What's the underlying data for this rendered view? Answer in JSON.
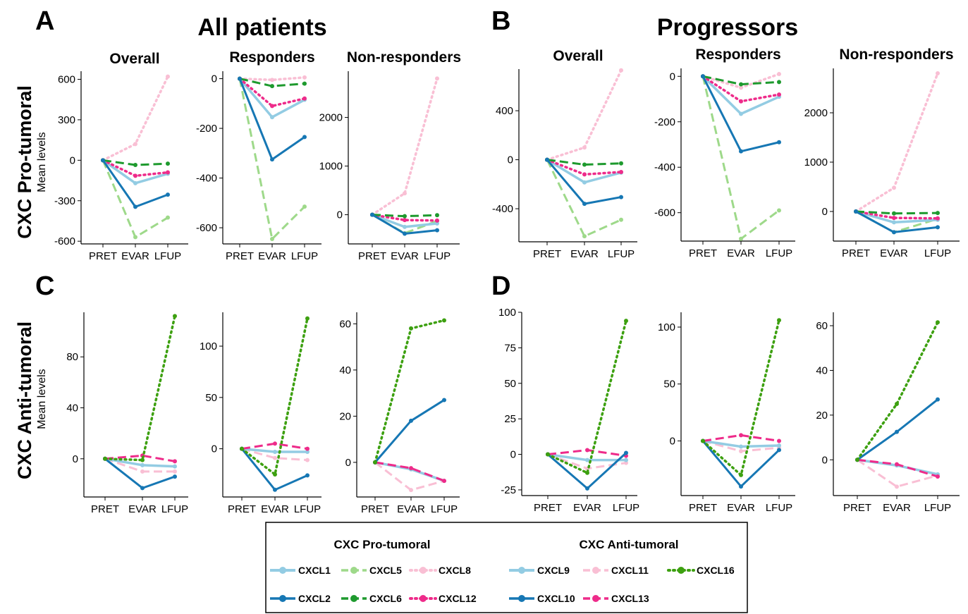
{
  "figure": {
    "groups": [
      {
        "letter": "A",
        "title": "All patients"
      },
      {
        "letter": "B",
        "title": "Progressors"
      },
      {
        "letter": "C",
        "title": ""
      },
      {
        "letter": "D",
        "title": ""
      }
    ],
    "row_labels": [
      "CXC Pro-tumoral",
      "CXC Anti-tumoral"
    ],
    "y_axis_label": "Mean levels"
  },
  "series_styles": {
    "CXCL1": {
      "color": "#93CCE3",
      "dash": "solid",
      "width": 3.5
    },
    "CXCL2": {
      "color": "#1677B4",
      "dash": "solid",
      "width": 3.0
    },
    "CXCL5": {
      "color": "#9ED98A",
      "dash": "dashed",
      "width": 3.0
    },
    "CXCL6": {
      "color": "#1E9A2E",
      "dash": "dashed",
      "width": 3.0
    },
    "CXCL8": {
      "color": "#F9BFD4",
      "dash": "dotted",
      "width": 3.5
    },
    "CXCL12": {
      "color": "#EE2B8A",
      "dash": "dotted",
      "width": 3.5
    },
    "CXCL9": {
      "color": "#93CCE3",
      "dash": "solid",
      "width": 3.5
    },
    "CXCL10": {
      "color": "#1677B4",
      "dash": "solid",
      "width": 3.0
    },
    "CXCL11": {
      "color": "#F9BFD4",
      "dash": "dashed",
      "width": 3.0
    },
    "CXCL13": {
      "color": "#EE2B8A",
      "dash": "dashed",
      "width": 3.0
    },
    "CXCL16": {
      "color": "#3DA010",
      "dash": "dotted",
      "width": 3.5
    }
  },
  "legend": {
    "pro_title": "CXC Pro-tumoral",
    "anti_title": "CXC Anti-tumoral",
    "pro_items": [
      [
        "CXCL1",
        "CXCL5",
        "CXCL8"
      ],
      [
        "CXCL2",
        "CXCL6",
        "CXCL12"
      ]
    ],
    "anti_items": [
      [
        "CXCL9",
        "CXCL11",
        "CXCL16"
      ],
      [
        "CXCL10",
        "CXCL13"
      ]
    ]
  },
  "chart_data": [
    {
      "id": "A-overall",
      "type": "line",
      "title": "Overall",
      "categories": [
        "PRET",
        "EVAR",
        "LFUP"
      ],
      "ylim": [
        -620,
        660
      ],
      "yticks": [
        -600,
        -300,
        0,
        300,
        600
      ],
      "series": [
        {
          "name": "CXCL8",
          "values": [
            0,
            120,
            620
          ]
        },
        {
          "name": "CXCL5",
          "values": [
            0,
            -570,
            -425
          ]
        },
        {
          "name": "CXCL1",
          "values": [
            0,
            -170,
            -100
          ]
        },
        {
          "name": "CXCL12",
          "values": [
            0,
            -115,
            -90
          ]
        },
        {
          "name": "CXCL6",
          "values": [
            0,
            -35,
            -25
          ]
        },
        {
          "name": "CXCL2",
          "values": [
            0,
            -345,
            -255
          ]
        }
      ]
    },
    {
      "id": "A-responders",
      "type": "line",
      "title": "Responders",
      "categories": [
        "PRET",
        "EVAR",
        "LFUP"
      ],
      "ylim": [
        -665,
        30
      ],
      "yticks": [
        -600,
        -400,
        -200,
        0
      ],
      "series": [
        {
          "name": "CXCL8",
          "values": [
            0,
            -5,
            5
          ]
        },
        {
          "name": "CXCL5",
          "values": [
            0,
            -645,
            -515
          ]
        },
        {
          "name": "CXCL1",
          "values": [
            0,
            -155,
            -85
          ]
        },
        {
          "name": "CXCL12",
          "values": [
            0,
            -110,
            -80
          ]
        },
        {
          "name": "CXCL6",
          "values": [
            0,
            -30,
            -20
          ]
        },
        {
          "name": "CXCL2",
          "values": [
            0,
            -325,
            -235
          ]
        }
      ]
    },
    {
      "id": "A-nonresponders",
      "type": "line",
      "title": "Non-responders",
      "categories": [
        "PRET",
        "EVAR",
        "LFUP"
      ],
      "ylim": [
        -600,
        2950
      ],
      "yticks": [
        0,
        1000,
        2000
      ],
      "series": [
        {
          "name": "CXCL8",
          "values": [
            0,
            440,
            2800
          ]
        },
        {
          "name": "CXCL5",
          "values": [
            0,
            -380,
            -130
          ]
        },
        {
          "name": "CXCL1",
          "values": [
            0,
            -250,
            -180
          ]
        },
        {
          "name": "CXCL12",
          "values": [
            0,
            -110,
            -120
          ]
        },
        {
          "name": "CXCL6",
          "values": [
            0,
            -30,
            -10
          ]
        },
        {
          "name": "CXCL2",
          "values": [
            0,
            -390,
            -320
          ]
        }
      ]
    },
    {
      "id": "B-overall",
      "type": "line",
      "title": "Overall",
      "categories": [
        "PRET",
        "EVAR",
        "LFUP"
      ],
      "ylim": [
        -670,
        740
      ],
      "yticks": [
        -400,
        0,
        400
      ],
      "series": [
        {
          "name": "CXCL8",
          "values": [
            0,
            100,
            730
          ]
        },
        {
          "name": "CXCL5",
          "values": [
            0,
            -625,
            -490
          ]
        },
        {
          "name": "CXCL1",
          "values": [
            0,
            -185,
            -105
          ]
        },
        {
          "name": "CXCL12",
          "values": [
            0,
            -120,
            -100
          ]
        },
        {
          "name": "CXCL6",
          "values": [
            0,
            -40,
            -30
          ]
        },
        {
          "name": "CXCL2",
          "values": [
            0,
            -360,
            -305
          ]
        }
      ]
    },
    {
      "id": "B-responders",
      "type": "line",
      "title": "Responders",
      "categories": [
        "PRET",
        "EVAR",
        "LFUP"
      ],
      "ylim": [
        -725,
        35
      ],
      "yticks": [
        -600,
        -400,
        -200,
        0
      ],
      "series": [
        {
          "name": "CXCL8",
          "values": [
            0,
            -50,
            10
          ]
        },
        {
          "name": "CXCL5",
          "values": [
            0,
            -715,
            -590
          ]
        },
        {
          "name": "CXCL1",
          "values": [
            0,
            -165,
            -90
          ]
        },
        {
          "name": "CXCL12",
          "values": [
            0,
            -110,
            -80
          ]
        },
        {
          "name": "CXCL6",
          "values": [
            0,
            -35,
            -25
          ]
        },
        {
          "name": "CXCL2",
          "values": [
            0,
            -330,
            -290
          ]
        }
      ]
    },
    {
      "id": "B-nonresponders",
      "type": "line",
      "title": "Non-responders",
      "categories": [
        "PRET",
        "EVAR",
        "LFUP"
      ],
      "ylim": [
        -600,
        2900
      ],
      "yticks": [
        0,
        1000,
        2000
      ],
      "series": [
        {
          "name": "CXCL8",
          "values": [
            0,
            480,
            2800
          ]
        },
        {
          "name": "CXCL5",
          "values": [
            0,
            -420,
            -150
          ]
        },
        {
          "name": "CXCL1",
          "values": [
            0,
            -220,
            -170
          ]
        },
        {
          "name": "CXCL12",
          "values": [
            0,
            -130,
            -140
          ]
        },
        {
          "name": "CXCL6",
          "values": [
            0,
            -40,
            -30
          ]
        },
        {
          "name": "CXCL2",
          "values": [
            0,
            -420,
            -320
          ]
        }
      ]
    },
    {
      "id": "C-overall",
      "type": "line",
      "title": "",
      "categories": [
        "PRET",
        "EVAR",
        "LFUP"
      ],
      "ylim": [
        -30,
        115
      ],
      "yticks": [
        0,
        40,
        80
      ],
      "series": [
        {
          "name": "CXCL11",
          "values": [
            0,
            -10,
            -10
          ]
        },
        {
          "name": "CXCL9",
          "values": [
            0,
            -5,
            -6
          ]
        },
        {
          "name": "CXCL13",
          "values": [
            0,
            2.5,
            -2
          ]
        },
        {
          "name": "CXCL10",
          "values": [
            0,
            -23,
            -14
          ]
        },
        {
          "name": "CXCL16",
          "values": [
            0,
            -1,
            112
          ]
        }
      ]
    },
    {
      "id": "C-responders",
      "type": "line",
      "title": "",
      "categories": [
        "PRET",
        "EVAR",
        "LFUP"
      ],
      "ylim": [
        -47,
        133
      ],
      "yticks": [
        0,
        50,
        100
      ],
      "series": [
        {
          "name": "CXCL11",
          "values": [
            0,
            -9,
            -11
          ]
        },
        {
          "name": "CXCL9",
          "values": [
            0,
            -3,
            -3
          ]
        },
        {
          "name": "CXCL13",
          "values": [
            0,
            5,
            0
          ]
        },
        {
          "name": "CXCL10",
          "values": [
            0,
            -40,
            -26
          ]
        },
        {
          "name": "CXCL16",
          "values": [
            0,
            -25,
            127
          ]
        }
      ]
    },
    {
      "id": "C-nonresponders",
      "type": "line",
      "title": "",
      "categories": [
        "PRET",
        "EVAR",
        "LFUP"
      ],
      "ylim": [
        -15,
        65
      ],
      "yticks": [
        0,
        20,
        40,
        60
      ],
      "series": [
        {
          "name": "CXCL11",
          "values": [
            0,
            -12,
            -8
          ]
        },
        {
          "name": "CXCL9",
          "values": [
            0,
            -3,
            -8
          ]
        },
        {
          "name": "CXCL13",
          "values": [
            0,
            -2.5,
            -8
          ]
        },
        {
          "name": "CXCL10",
          "values": [
            0,
            18,
            27
          ]
        },
        {
          "name": "CXCL16",
          "values": [
            0,
            58,
            61.5
          ]
        }
      ]
    },
    {
      "id": "D-overall",
      "type": "line",
      "title": "",
      "categories": [
        "PRET",
        "EVAR",
        "LFUP"
      ],
      "ylim": [
        -29,
        100
      ],
      "yticks": [
        -25,
        0,
        25,
        50,
        75,
        100
      ],
      "series": [
        {
          "name": "CXCL11",
          "values": [
            0,
            -10,
            -6
          ]
        },
        {
          "name": "CXCL9",
          "values": [
            0,
            -4,
            -4
          ]
        },
        {
          "name": "CXCL13",
          "values": [
            0,
            3,
            -1
          ]
        },
        {
          "name": "CXCL10",
          "values": [
            0,
            -24,
            1
          ]
        },
        {
          "name": "CXCL16",
          "values": [
            0,
            -13,
            94
          ]
        }
      ]
    },
    {
      "id": "D-responders",
      "type": "line",
      "title": "",
      "categories": [
        "PRET",
        "EVAR",
        "LFUP"
      ],
      "ylim": [
        -48,
        113
      ],
      "yticks": [
        0,
        50,
        100
      ],
      "series": [
        {
          "name": "CXCL11",
          "values": [
            0,
            -9,
            -6
          ]
        },
        {
          "name": "CXCL9",
          "values": [
            0,
            -5,
            -4
          ]
        },
        {
          "name": "CXCL13",
          "values": [
            0,
            5,
            0
          ]
        },
        {
          "name": "CXCL10",
          "values": [
            0,
            -40,
            -8
          ]
        },
        {
          "name": "CXCL16",
          "values": [
            0,
            -30,
            106
          ]
        }
      ]
    },
    {
      "id": "D-nonresponders",
      "type": "line",
      "title": "",
      "categories": [
        "PRET",
        "EVAR",
        "LFUP"
      ],
      "ylim": [
        -16,
        66
      ],
      "yticks": [
        0,
        20,
        40,
        60
      ],
      "series": [
        {
          "name": "CXCL11",
          "values": [
            0,
            -12,
            -7
          ]
        },
        {
          "name": "CXCL9",
          "values": [
            0,
            -2.5,
            -6.5
          ]
        },
        {
          "name": "CXCL13",
          "values": [
            0,
            -2,
            -7.5
          ]
        },
        {
          "name": "CXCL10",
          "values": [
            0,
            12.5,
            27
          ]
        },
        {
          "name": "CXCL16",
          "values": [
            0,
            25,
            61.5
          ]
        }
      ]
    }
  ]
}
